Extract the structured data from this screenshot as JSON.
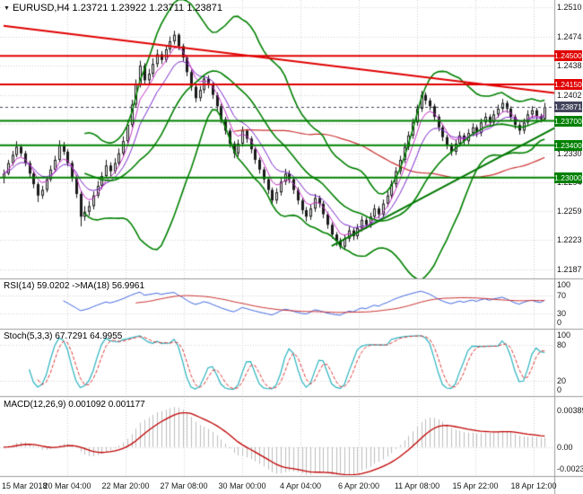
{
  "header": {
    "symbol": "EURUSD",
    "timeframe": "H4",
    "title": "EURUSD,H4 1.23721 1.23922 1.23711 1.23871"
  },
  "panels": {
    "rsi": {
      "label": "RSI(14) 59.0202 ->MA(18) 56.9961",
      "axis_ticks": [
        100,
        70,
        30,
        0
      ],
      "grid": [
        70,
        30
      ],
      "values": {
        "rsi": "59.0202",
        "ma": "56.9961"
      }
    },
    "stoch": {
      "label": "Stoch(5,3,3) 67.7291 64.9955",
      "axis_ticks": [
        100,
        80,
        20,
        0
      ],
      "grid": [
        80,
        20
      ],
      "values": {
        "main": "67.7291",
        "signal": "64.9955"
      }
    },
    "macd": {
      "label": "MACD(12,26,9) 0.001092 0.001177",
      "axis_ticks": [
        0.00389,
        0,
        -0.00231
      ],
      "grid": [
        0
      ],
      "values": {
        "macd": "0.001092",
        "signal": "0.001177"
      }
    }
  },
  "chart_data": {
    "type": "candlestick",
    "symbol": "EURUSD",
    "timeframe": "H4",
    "last_bar": {
      "open": 1.23721,
      "high": 1.23922,
      "low": 1.23711,
      "close": 1.23871
    },
    "y_ticks": [
      1.251,
      1.2474,
      1.2438,
      1.2402,
      1.2366,
      1.233,
      1.2294,
      1.2259,
      1.2223,
      1.2187
    ],
    "x_labels": [
      "15 Mar 2018",
      "20 Mar 04:00",
      "22 Mar 20:00",
      "27 Mar 08:00",
      "30 Mar 00:00",
      "4 Apr 04:00",
      "6 Apr 20:00",
      "11 Apr 08:00",
      "15 Apr 22:00",
      "18 Apr 12:00"
    ],
    "levels": [
      {
        "price": 1.245,
        "label": "1.24500",
        "color": "#e00000",
        "kind": "resistance"
      },
      {
        "price": 1.2415,
        "label": "1.24150",
        "color": "#e00000",
        "kind": "resistance"
      },
      {
        "price": 1.237,
        "label": "1.23700",
        "color": "#008000",
        "kind": "support"
      },
      {
        "price": 1.234,
        "label": "1.23400",
        "color": "#008000",
        "kind": "support"
      },
      {
        "price": 1.23,
        "label": "1.23000",
        "color": "#008000",
        "kind": "support"
      }
    ],
    "current": {
      "price": 1.23871,
      "label": "1.23871",
      "color": "#43455c"
    },
    "trendlines": [
      {
        "name": "descending-resistance",
        "color": "#e00000",
        "width": 2,
        "from": {
          "bar": 0,
          "price": 1.2487
        },
        "to": {
          "bar": 130,
          "price": 1.2404
        }
      },
      {
        "name": "ascending-support",
        "color": "#007700",
        "width": 2,
        "from": {
          "bar": 77,
          "price": 1.2216
        },
        "to": {
          "bar": 130,
          "price": 1.2363
        }
      }
    ],
    "indicators": {
      "rsi_period": 14,
      "rsi_ma": 18,
      "stoch": [
        5,
        3,
        3
      ],
      "macd": [
        12,
        26,
        9
      ],
      "bollinger": [
        20,
        2
      ],
      "ma_fast": 5,
      "ma_mid": 10,
      "ma_slow": 55
    },
    "colors": {
      "grid": "#d4d4d4",
      "separator": "#9b9b9b",
      "outline": "#1a1a1a",
      "bull": "#ffffff",
      "bear": "#1a1a1a",
      "bollinger": "#008000",
      "ema_fast": "#c832c8",
      "ema_mid": "#7d26cd",
      "ma_slow": "#cc3333",
      "rsi": "#4169e1",
      "rsi_ma": "#cd3333",
      "stoch_main": "#2bb3c0",
      "stoch_signal": "#e03b3b",
      "macd_hist": "#bdbdbd",
      "macd_signal": "#c00000"
    },
    "candles": [
      [
        1.23,
        1.231,
        1.2293,
        1.2305
      ],
      [
        1.2305,
        1.2322,
        1.2303,
        1.2318
      ],
      [
        1.2318,
        1.2333,
        1.2315,
        1.2328
      ],
      [
        1.2328,
        1.2345,
        1.2325,
        1.2338
      ],
      [
        1.2338,
        1.2341,
        1.2326,
        1.233
      ],
      [
        1.233,
        1.2333,
        1.2314,
        1.2318
      ],
      [
        1.2318,
        1.2321,
        1.23,
        1.2305
      ],
      [
        1.2305,
        1.2308,
        1.2287,
        1.2292
      ],
      [
        1.2292,
        1.2295,
        1.227,
        1.2278
      ],
      [
        1.2278,
        1.229,
        1.2274,
        1.2285
      ],
      [
        1.2285,
        1.2302,
        1.2282,
        1.2298
      ],
      [
        1.2298,
        1.2315,
        1.2295,
        1.231
      ],
      [
        1.231,
        1.2327,
        1.2307,
        1.2322
      ],
      [
        1.2322,
        1.2346,
        1.2319,
        1.234
      ],
      [
        1.234,
        1.2344,
        1.2328,
        1.2332
      ],
      [
        1.2332,
        1.2335,
        1.2314,
        1.2318
      ],
      [
        1.2318,
        1.2321,
        1.2295,
        1.23
      ],
      [
        1.23,
        1.2303,
        1.2275,
        1.228
      ],
      [
        1.228,
        1.2283,
        1.224,
        1.2252
      ],
      [
        1.2252,
        1.2265,
        1.2247,
        1.2258
      ],
      [
        1.2258,
        1.2271,
        1.2253,
        1.2265
      ],
      [
        1.2265,
        1.2283,
        1.2261,
        1.2278
      ],
      [
        1.2278,
        1.2296,
        1.2275,
        1.229
      ],
      [
        1.229,
        1.2307,
        1.2286,
        1.2302
      ],
      [
        1.2302,
        1.2322,
        1.2299,
        1.2315
      ],
      [
        1.2315,
        1.2319,
        1.2302,
        1.2308
      ],
      [
        1.2308,
        1.2324,
        1.2305,
        1.2318
      ],
      [
        1.2318,
        1.2336,
        1.2315,
        1.233
      ],
      [
        1.233,
        1.2351,
        1.2327,
        1.2345
      ],
      [
        1.2345,
        1.2371,
        1.2342,
        1.2365
      ],
      [
        1.2365,
        1.2396,
        1.2362,
        1.239
      ],
      [
        1.239,
        1.2421,
        1.2387,
        1.2415
      ],
      [
        1.2415,
        1.2444,
        1.2411,
        1.2438
      ],
      [
        1.2438,
        1.2441,
        1.2415,
        1.242
      ],
      [
        1.242,
        1.2434,
        1.2416,
        1.2428
      ],
      [
        1.2428,
        1.2447,
        1.2424,
        1.244
      ],
      [
        1.244,
        1.2458,
        1.2436,
        1.2452
      ],
      [
        1.2452,
        1.2456,
        1.244,
        1.2445
      ],
      [
        1.2445,
        1.2463,
        1.2442,
        1.2458
      ],
      [
        1.2458,
        1.2474,
        1.2454,
        1.2468
      ],
      [
        1.2468,
        1.2481,
        1.2464,
        1.2476
      ],
      [
        1.2476,
        1.2478,
        1.2457,
        1.2462
      ],
      [
        1.2462,
        1.2465,
        1.2443,
        1.2448
      ],
      [
        1.2448,
        1.2451,
        1.2425,
        1.243
      ],
      [
        1.243,
        1.2433,
        1.2407,
        1.2412
      ],
      [
        1.2412,
        1.2415,
        1.2393,
        1.2398
      ],
      [
        1.2398,
        1.2413,
        1.2394,
        1.2408
      ],
      [
        1.2408,
        1.2427,
        1.2404,
        1.2422
      ],
      [
        1.2422,
        1.2426,
        1.241,
        1.2415
      ],
      [
        1.2415,
        1.2418,
        1.2397,
        1.2402
      ],
      [
        1.2402,
        1.2405,
        1.2383,
        1.2388
      ],
      [
        1.2388,
        1.2391,
        1.2367,
        1.2372
      ],
      [
        1.2372,
        1.2375,
        1.2353,
        1.2358
      ],
      [
        1.2358,
        1.2361,
        1.2337,
        1.2342
      ],
      [
        1.2342,
        1.2345,
        1.2324,
        1.233
      ],
      [
        1.233,
        1.2347,
        1.2326,
        1.2342
      ],
      [
        1.2342,
        1.2363,
        1.2338,
        1.2358
      ],
      [
        1.2358,
        1.236,
        1.2343,
        1.2348
      ],
      [
        1.2348,
        1.2351,
        1.233,
        1.2335
      ],
      [
        1.2335,
        1.2338,
        1.2317,
        1.2322
      ],
      [
        1.2322,
        1.2325,
        1.2305,
        1.231
      ],
      [
        1.231,
        1.2313,
        1.2293,
        1.2298
      ],
      [
        1.2298,
        1.2301,
        1.228,
        1.2285
      ],
      [
        1.2285,
        1.2288,
        1.2266,
        1.2272
      ],
      [
        1.2272,
        1.2287,
        1.2268,
        1.2282
      ],
      [
        1.2282,
        1.23,
        1.2278,
        1.2295
      ],
      [
        1.2295,
        1.2311,
        1.2291,
        1.2305
      ],
      [
        1.2305,
        1.2309,
        1.2293,
        1.2298
      ],
      [
        1.2298,
        1.2301,
        1.228,
        1.2285
      ],
      [
        1.2285,
        1.2288,
        1.2267,
        1.2272
      ],
      [
        1.2272,
        1.2275,
        1.2255,
        1.226
      ],
      [
        1.226,
        1.2264,
        1.2246,
        1.2252
      ],
      [
        1.2252,
        1.2267,
        1.2248,
        1.2262
      ],
      [
        1.2262,
        1.228,
        1.2258,
        1.2275
      ],
      [
        1.2275,
        1.2278,
        1.2263,
        1.2268
      ],
      [
        1.2268,
        1.2271,
        1.225,
        1.2255
      ],
      [
        1.2255,
        1.2258,
        1.2237,
        1.2242
      ],
      [
        1.2242,
        1.2245,
        1.2225,
        1.223
      ],
      [
        1.223,
        1.2233,
        1.2216,
        1.2222
      ],
      [
        1.2222,
        1.2226,
        1.2212,
        1.2215
      ],
      [
        1.2215,
        1.223,
        1.2211,
        1.2225
      ],
      [
        1.2225,
        1.224,
        1.2221,
        1.2235
      ],
      [
        1.2235,
        1.2238,
        1.2223,
        1.2228
      ],
      [
        1.2228,
        1.2243,
        1.2224,
        1.2238
      ],
      [
        1.2238,
        1.2253,
        1.2234,
        1.2248
      ],
      [
        1.2248,
        1.2251,
        1.2237,
        1.2242
      ],
      [
        1.2242,
        1.2257,
        1.2238,
        1.2252
      ],
      [
        1.2252,
        1.2267,
        1.2248,
        1.2262
      ],
      [
        1.2262,
        1.2265,
        1.225,
        1.2255
      ],
      [
        1.2255,
        1.2273,
        1.2251,
        1.2268
      ],
      [
        1.2268,
        1.2283,
        1.2264,
        1.2278
      ],
      [
        1.2278,
        1.2297,
        1.2274,
        1.2292
      ],
      [
        1.2292,
        1.2313,
        1.2288,
        1.2308
      ],
      [
        1.2308,
        1.2327,
        1.2304,
        1.2322
      ],
      [
        1.2322,
        1.2343,
        1.2318,
        1.2338
      ],
      [
        1.2338,
        1.2357,
        1.2334,
        1.2352
      ],
      [
        1.2352,
        1.2373,
        1.2348,
        1.2368
      ],
      [
        1.2368,
        1.239,
        1.2364,
        1.2385
      ],
      [
        1.2385,
        1.2407,
        1.2381,
        1.2402
      ],
      [
        1.2402,
        1.2405,
        1.239,
        1.2395
      ],
      [
        1.2395,
        1.2398,
        1.2383,
        1.2388
      ],
      [
        1.2388,
        1.2391,
        1.237,
        1.2375
      ],
      [
        1.2375,
        1.2378,
        1.2357,
        1.2362
      ],
      [
        1.2362,
        1.2365,
        1.2345,
        1.235
      ],
      [
        1.235,
        1.2353,
        1.2335,
        1.234
      ],
      [
        1.234,
        1.2343,
        1.2327,
        1.2332
      ],
      [
        1.2332,
        1.2347,
        1.2328,
        1.2342
      ],
      [
        1.2342,
        1.2357,
        1.2338,
        1.2352
      ],
      [
        1.2352,
        1.2355,
        1.234,
        1.2345
      ],
      [
        1.2345,
        1.236,
        1.2341,
        1.2355
      ],
      [
        1.2355,
        1.2367,
        1.2351,
        1.2362
      ],
      [
        1.2362,
        1.2365,
        1.235,
        1.2355
      ],
      [
        1.2355,
        1.2373,
        1.2351,
        1.2368
      ],
      [
        1.2368,
        1.238,
        1.2364,
        1.2375
      ],
      [
        1.2375,
        1.2378,
        1.2363,
        1.2368
      ],
      [
        1.2368,
        1.2383,
        1.2364,
        1.2378
      ],
      [
        1.2378,
        1.239,
        1.2374,
        1.2385
      ],
      [
        1.2385,
        1.2397,
        1.2381,
        1.2392
      ],
      [
        1.2392,
        1.2395,
        1.238,
        1.2385
      ],
      [
        1.2385,
        1.2388,
        1.237,
        1.2375
      ],
      [
        1.2375,
        1.2378,
        1.236,
        1.2365
      ],
      [
        1.2365,
        1.2368,
        1.2353,
        1.2358
      ],
      [
        1.2358,
        1.2373,
        1.2354,
        1.2368
      ],
      [
        1.2368,
        1.2383,
        1.2364,
        1.2378
      ],
      [
        1.2378,
        1.2388,
        1.2374,
        1.2383
      ],
      [
        1.2383,
        1.2386,
        1.2371,
        1.2376
      ],
      [
        1.2376,
        1.2379,
        1.2368,
        1.23721
      ],
      [
        1.23721,
        1.23922,
        1.23711,
        1.23871
      ]
    ]
  }
}
